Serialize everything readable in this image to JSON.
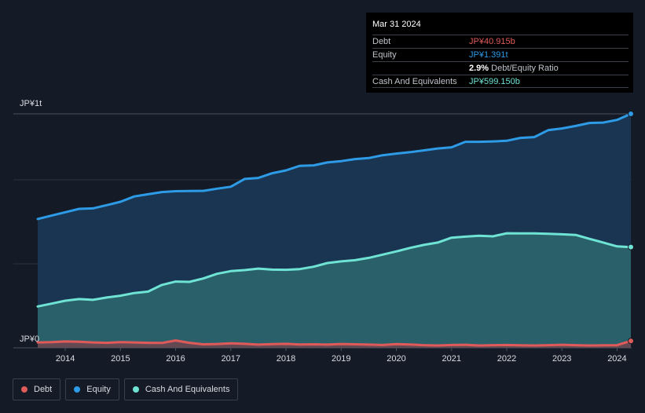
{
  "tooltip": {
    "date": "Mar 31 2024",
    "debt_label": "Debt",
    "debt_value": "JP¥40.915b",
    "equity_label": "Equity",
    "equity_value": "JP¥1.391t",
    "ratio_pct": "2.9%",
    "ratio_label": "Debt/Equity Ratio",
    "cash_label": "Cash And Equivalents",
    "cash_value": "JP¥599.150b"
  },
  "legend": {
    "debt": "Debt",
    "equity": "Equity",
    "cash": "Cash And Equivalents"
  },
  "colors": {
    "debt": "#e05a5a",
    "equity": "#2e9be6",
    "cash": "#6fe3d4",
    "ratio": "#ffffff"
  },
  "chart_data": {
    "type": "area",
    "title": "",
    "xlabel": "",
    "ylabel": "",
    "y_top_label": "JP¥1t",
    "y_bottom_label": "JP¥0",
    "xlim": [
      2013.5,
      2024.25
    ],
    "ylim": [
      0,
      1.391
    ],
    "x_ticks": [
      "2014",
      "2015",
      "2016",
      "2017",
      "2018",
      "2019",
      "2020",
      "2021",
      "2022",
      "2023",
      "2024"
    ],
    "x": [
      2013.5,
      2013.75,
      2014.0,
      2014.25,
      2014.5,
      2014.75,
      2015.0,
      2015.25,
      2015.5,
      2015.75,
      2016.0,
      2016.25,
      2016.5,
      2016.75,
      2017.0,
      2017.25,
      2017.5,
      2017.75,
      2018.0,
      2018.25,
      2018.5,
      2018.75,
      2019.0,
      2019.25,
      2019.5,
      2019.75,
      2020.0,
      2020.25,
      2020.5,
      2020.75,
      2021.0,
      2021.25,
      2021.5,
      2021.75,
      2022.0,
      2022.25,
      2022.5,
      2022.75,
      2023.0,
      2023.25,
      2023.5,
      2023.75,
      2024.0,
      2024.25
    ],
    "series": [
      {
        "name": "Equity",
        "values": [
          0.766,
          0.786,
          0.806,
          0.826,
          0.829,
          0.848,
          0.868,
          0.9,
          0.913,
          0.926,
          0.931,
          0.932,
          0.933,
          0.946,
          0.958,
          1.004,
          1.01,
          1.038,
          1.055,
          1.082,
          1.085,
          1.102,
          1.11,
          1.122,
          1.128,
          1.145,
          1.155,
          1.163,
          1.174,
          1.185,
          1.192,
          1.225,
          1.225,
          1.227,
          1.231,
          1.248,
          1.253,
          1.294,
          1.304,
          1.319,
          1.337,
          1.339,
          1.355,
          1.391
        ]
      },
      {
        "name": "Cash And Equivalents",
        "values": [
          0.246,
          0.263,
          0.28,
          0.29,
          0.285,
          0.299,
          0.31,
          0.326,
          0.334,
          0.374,
          0.394,
          0.392,
          0.412,
          0.44,
          0.456,
          0.462,
          0.471,
          0.465,
          0.464,
          0.468,
          0.482,
          0.504,
          0.514,
          0.521,
          0.535,
          0.554,
          0.573,
          0.594,
          0.612,
          0.626,
          0.655,
          0.661,
          0.666,
          0.663,
          0.681,
          0.68,
          0.68,
          0.678,
          0.675,
          0.671,
          0.648,
          0.626,
          0.603,
          0.599
        ]
      },
      {
        "name": "Debt",
        "values": [
          0.032,
          0.034,
          0.038,
          0.036,
          0.032,
          0.03,
          0.034,
          0.032,
          0.03,
          0.029,
          0.044,
          0.03,
          0.021,
          0.023,
          0.027,
          0.024,
          0.019,
          0.022,
          0.024,
          0.02,
          0.021,
          0.019,
          0.023,
          0.021,
          0.019,
          0.017,
          0.022,
          0.02,
          0.016,
          0.014,
          0.017,
          0.018,
          0.014,
          0.016,
          0.017,
          0.015,
          0.014,
          0.016,
          0.018,
          0.016,
          0.014,
          0.015,
          0.016,
          0.041
        ]
      }
    ]
  }
}
